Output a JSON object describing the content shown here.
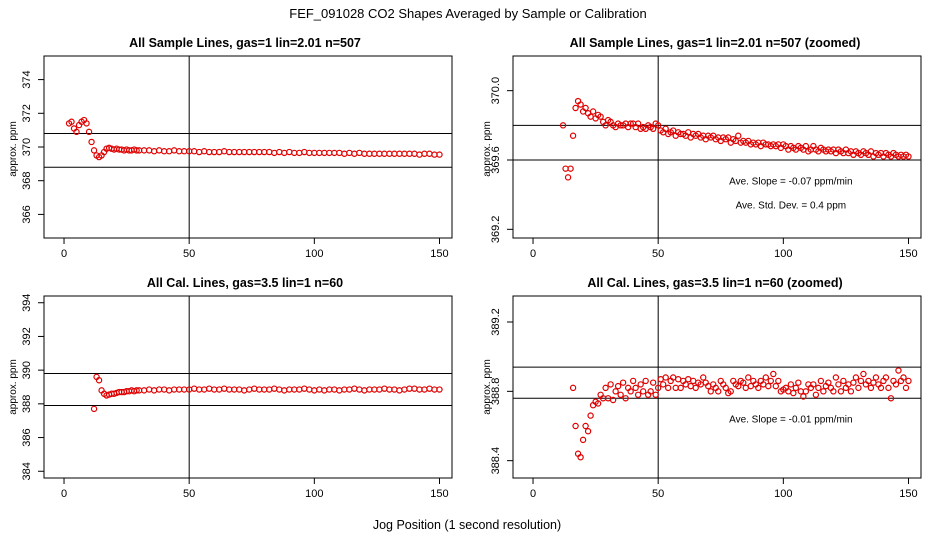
{
  "figure": {
    "title": "FEF_091028  CO2 Shapes Averaged by Sample or Calibration",
    "xlabel": "Jog Position (1 second resolution)"
  },
  "chart_data": [
    {
      "type": "scatter",
      "title": "All Sample Lines, gas=1 lin=2.01 n=507",
      "xlabel": "",
      "ylabel": "approx. ppm",
      "xlim": [
        -8,
        155
      ],
      "ylim": [
        364.6,
        375.4
      ],
      "xticks": [
        0,
        50,
        100,
        150
      ],
      "yticks": [
        366,
        368,
        370,
        372,
        374
      ],
      "ytick_decimals": 0,
      "vline": 50,
      "hlines": [
        370.8,
        368.8
      ],
      "annotations": [],
      "point_color": "#e00000",
      "series": [
        {
          "x": [
            2,
            3,
            4,
            5,
            6,
            7,
            8,
            9,
            10,
            11,
            12,
            13,
            14,
            15,
            16,
            17,
            18,
            19,
            20,
            21,
            22,
            23,
            24,
            25,
            26,
            27,
            28,
            29,
            30,
            32,
            34,
            36,
            38,
            40,
            42,
            44,
            46,
            48,
            50,
            52,
            54,
            56,
            58,
            60,
            62,
            64,
            66,
            68,
            70,
            72,
            74,
            76,
            78,
            80,
            82,
            84,
            86,
            88,
            90,
            92,
            94,
            96,
            98,
            100,
            102,
            104,
            106,
            108,
            110,
            112,
            114,
            116,
            118,
            120,
            122,
            124,
            126,
            128,
            130,
            132,
            134,
            136,
            138,
            140,
            142,
            144,
            146,
            148,
            150
          ],
          "y": [
            371.4,
            371.5,
            371.1,
            370.9,
            371.3,
            371.5,
            371.6,
            371.4,
            370.9,
            370.3,
            369.8,
            369.5,
            369.4,
            369.5,
            369.7,
            369.9,
            369.95,
            369.9,
            369.85,
            369.9,
            369.85,
            369.85,
            369.8,
            369.85,
            369.8,
            369.8,
            369.85,
            369.8,
            369.8,
            369.8,
            369.8,
            369.75,
            369.8,
            369.75,
            369.75,
            369.8,
            369.75,
            369.75,
            369.75,
            369.75,
            369.7,
            369.75,
            369.7,
            369.7,
            369.7,
            369.75,
            369.7,
            369.7,
            369.7,
            369.7,
            369.7,
            369.7,
            369.7,
            369.7,
            369.7,
            369.65,
            369.7,
            369.65,
            369.7,
            369.65,
            369.65,
            369.7,
            369.65,
            369.65,
            369.65,
            369.65,
            369.65,
            369.65,
            369.65,
            369.6,
            369.65,
            369.6,
            369.65,
            369.6,
            369.6,
            369.6,
            369.6,
            369.6,
            369.6,
            369.6,
            369.6,
            369.6,
            369.6,
            369.6,
            369.55,
            369.6,
            369.6,
            369.55,
            369.55
          ]
        }
      ]
    },
    {
      "type": "scatter",
      "title": "All Sample Lines, gas=1 lin=2.01 n=507 (zoomed)",
      "xlabel": "",
      "ylabel": "approx. ppm",
      "xlim": [
        -8,
        155
      ],
      "ylim": [
        369.15,
        370.2
      ],
      "xticks": [
        0,
        50,
        100,
        150
      ],
      "yticks": [
        369.2,
        369.6,
        370.0
      ],
      "ytick_decimals": 1,
      "vline": 50,
      "hlines": [
        369.8,
        369.6
      ],
      "annotations": [
        {
          "text": "Ave. Slope =  -0.07  ppm/min",
          "x": 103,
          "y": 369.46
        },
        {
          "text": "Ave. Std. Dev. =  0.4  ppm",
          "x": 103,
          "y": 369.32
        }
      ],
      "point_color": "#e00000",
      "series": [
        {
          "x": [
            12,
            13,
            14,
            15,
            16,
            17,
            18,
            19,
            20,
            21,
            22,
            23,
            24,
            25,
            26,
            27,
            28,
            29,
            30,
            31,
            32,
            33,
            34,
            35,
            36,
            37,
            38,
            39,
            40,
            41,
            42,
            43,
            44,
            45,
            46,
            47,
            48,
            49,
            50,
            51,
            52,
            53,
            54,
            55,
            56,
            57,
            58,
            59,
            60,
            61,
            62,
            63,
            64,
            65,
            66,
            67,
            68,
            69,
            70,
            71,
            72,
            73,
            74,
            75,
            76,
            77,
            78,
            79,
            80,
            81,
            82,
            83,
            84,
            85,
            86,
            87,
            88,
            89,
            90,
            91,
            92,
            93,
            94,
            95,
            96,
            97,
            98,
            99,
            100,
            101,
            102,
            103,
            104,
            105,
            106,
            107,
            108,
            109,
            110,
            111,
            112,
            113,
            114,
            115,
            116,
            117,
            118,
            119,
            120,
            121,
            122,
            123,
            124,
            125,
            126,
            127,
            128,
            129,
            130,
            131,
            132,
            133,
            134,
            135,
            136,
            137,
            138,
            139,
            140,
            141,
            142,
            143,
            144,
            145,
            146,
            147,
            148,
            149,
            150
          ],
          "y": [
            369.8,
            369.55,
            369.5,
            369.55,
            369.74,
            369.9,
            369.94,
            369.92,
            369.88,
            369.9,
            369.87,
            369.85,
            369.88,
            369.84,
            369.86,
            369.85,
            369.82,
            369.8,
            369.83,
            369.82,
            369.8,
            369.79,
            369.81,
            369.8,
            369.8,
            369.81,
            369.79,
            369.81,
            369.81,
            369.79,
            369.81,
            369.78,
            369.79,
            369.78,
            369.8,
            369.79,
            369.78,
            369.81,
            369.8,
            369.77,
            369.76,
            369.78,
            369.75,
            369.76,
            369.77,
            369.74,
            369.76,
            369.75,
            369.75,
            369.74,
            369.76,
            369.73,
            369.75,
            369.74,
            369.75,
            369.73,
            369.74,
            369.72,
            369.74,
            369.73,
            369.74,
            369.72,
            369.73,
            369.71,
            369.73,
            369.72,
            369.73,
            369.7,
            369.72,
            369.71,
            369.74,
            369.7,
            369.71,
            369.7,
            369.71,
            369.69,
            369.7,
            369.69,
            369.7,
            369.68,
            369.7,
            369.69,
            369.69,
            369.68,
            369.69,
            369.68,
            369.69,
            369.67,
            369.69,
            369.68,
            369.66,
            369.68,
            369.67,
            369.66,
            369.68,
            369.67,
            369.66,
            369.68,
            369.65,
            369.66,
            369.68,
            369.66,
            369.65,
            369.67,
            369.66,
            369.65,
            369.66,
            369.65,
            369.66,
            369.64,
            369.66,
            369.65,
            369.64,
            369.66,
            369.64,
            369.65,
            369.63,
            369.65,
            369.64,
            369.63,
            369.65,
            369.64,
            369.63,
            369.65,
            369.62,
            369.64,
            369.63,
            369.64,
            369.62,
            369.64,
            369.63,
            369.62,
            369.64,
            369.63,
            369.62,
            369.63,
            369.62,
            369.63,
            369.62
          ]
        }
      ]
    },
    {
      "type": "scatter",
      "title": "All Cal. Lines, gas=3.5 lin=1 n=60",
      "xlabel": "",
      "ylabel": "approx. ppm",
      "xlim": [
        -8,
        155
      ],
      "ylim": [
        383.6,
        394.4
      ],
      "xticks": [
        0,
        50,
        100,
        150
      ],
      "yticks": [
        384,
        386,
        388,
        390,
        392,
        394
      ],
      "ytick_decimals": 0,
      "vline": 50,
      "hlines": [
        389.8,
        387.9
      ],
      "annotations": [],
      "point_color": "#e00000",
      "series": [
        {
          "x": [
            12,
            13,
            14,
            15,
            16,
            17,
            18,
            19,
            20,
            21,
            22,
            23,
            24,
            25,
            26,
            27,
            28,
            29,
            30,
            32,
            34,
            36,
            38,
            40,
            42,
            44,
            46,
            48,
            50,
            52,
            54,
            56,
            58,
            60,
            62,
            64,
            66,
            68,
            70,
            72,
            74,
            76,
            78,
            80,
            82,
            84,
            86,
            88,
            90,
            92,
            94,
            96,
            98,
            100,
            102,
            104,
            106,
            108,
            110,
            112,
            114,
            116,
            118,
            120,
            122,
            124,
            126,
            128,
            130,
            132,
            134,
            136,
            138,
            140,
            142,
            144,
            146,
            148,
            150
          ],
          "y": [
            387.7,
            389.6,
            389.4,
            388.8,
            388.6,
            388.5,
            388.55,
            388.6,
            388.6,
            388.65,
            388.7,
            388.7,
            388.7,
            388.75,
            388.75,
            388.8,
            388.75,
            388.8,
            388.8,
            388.8,
            388.85,
            388.8,
            388.85,
            388.85,
            388.8,
            388.85,
            388.85,
            388.85,
            388.85,
            388.9,
            388.85,
            388.85,
            388.9,
            388.85,
            388.85,
            388.9,
            388.85,
            388.85,
            388.85,
            388.8,
            388.85,
            388.9,
            388.85,
            388.85,
            388.85,
            388.9,
            388.85,
            388.8,
            388.85,
            388.85,
            388.85,
            388.9,
            388.85,
            388.8,
            388.85,
            388.8,
            388.85,
            388.85,
            388.8,
            388.85,
            388.85,
            388.9,
            388.85,
            388.8,
            388.85,
            388.85,
            388.85,
            388.9,
            388.85,
            388.85,
            388.8,
            388.85,
            388.9,
            388.9,
            388.85,
            388.85,
            388.9,
            388.85,
            388.85
          ]
        }
      ]
    },
    {
      "type": "scatter",
      "title": "All Cal. Lines, gas=3.5 lin=1 n=60 (zoomed)",
      "xlabel": "",
      "ylabel": "approx. ppm",
      "xlim": [
        -8,
        155
      ],
      "ylim": [
        388.3,
        389.35
      ],
      "xticks": [
        0,
        50,
        100,
        150
      ],
      "yticks": [
        388.4,
        388.8,
        389.2
      ],
      "ytick_decimals": 1,
      "vline": 50,
      "hlines": [
        388.94,
        388.76
      ],
      "annotations": [
        {
          "text": "Ave. Slope =  -0.01  ppm/min",
          "x": 103,
          "y": 388.62
        }
      ],
      "point_color": "#e00000",
      "series": [
        {
          "x": [
            16,
            17,
            18,
            19,
            20,
            21,
            22,
            23,
            24,
            25,
            26,
            27,
            28,
            29,
            30,
            31,
            32,
            33,
            34,
            35,
            36,
            37,
            38,
            39,
            40,
            41,
            42,
            43,
            44,
            45,
            46,
            47,
            48,
            49,
            50,
            51,
            52,
            53,
            54,
            55,
            56,
            57,
            58,
            59,
            60,
            61,
            62,
            63,
            64,
            65,
            66,
            67,
            68,
            69,
            70,
            71,
            72,
            73,
            74,
            75,
            76,
            77,
            78,
            79,
            80,
            81,
            82,
            83,
            84,
            85,
            86,
            87,
            88,
            89,
            90,
            91,
            92,
            93,
            94,
            95,
            96,
            97,
            98,
            99,
            100,
            101,
            102,
            103,
            104,
            105,
            106,
            107,
            108,
            109,
            110,
            111,
            112,
            113,
            114,
            115,
            116,
            117,
            118,
            119,
            120,
            121,
            122,
            123,
            124,
            125,
            126,
            127,
            128,
            129,
            130,
            131,
            132,
            133,
            134,
            135,
            136,
            137,
            138,
            139,
            140,
            141,
            142,
            143,
            144,
            145,
            146,
            147,
            148,
            149,
            150
          ],
          "y": [
            388.82,
            388.6,
            388.44,
            388.42,
            388.52,
            388.6,
            388.57,
            388.66,
            388.72,
            388.74,
            388.73,
            388.78,
            388.76,
            388.82,
            388.76,
            388.84,
            388.75,
            388.8,
            388.83,
            388.78,
            388.85,
            388.76,
            388.82,
            388.8,
            388.86,
            388.82,
            388.78,
            388.84,
            388.8,
            388.86,
            388.78,
            388.8,
            388.85,
            388.78,
            388.82,
            388.87,
            388.84,
            388.88,
            388.82,
            388.86,
            388.88,
            388.82,
            388.87,
            388.82,
            388.86,
            388.84,
            388.87,
            388.83,
            388.86,
            388.82,
            388.85,
            388.84,
            388.88,
            388.85,
            388.83,
            388.8,
            388.84,
            388.82,
            388.8,
            388.86,
            388.84,
            388.82,
            388.79,
            388.8,
            388.86,
            388.84,
            388.83,
            388.86,
            388.85,
            388.82,
            388.88,
            388.83,
            388.86,
            388.84,
            388.82,
            388.86,
            388.84,
            388.88,
            388.83,
            388.86,
            388.9,
            388.83,
            388.86,
            388.8,
            388.81,
            388.82,
            388.8,
            388.84,
            388.79,
            388.82,
            388.85,
            388.8,
            388.77,
            388.8,
            388.84,
            388.82,
            388.84,
            388.78,
            388.82,
            388.86,
            388.8,
            388.83,
            388.85,
            388.82,
            388.8,
            388.88,
            388.84,
            388.8,
            388.86,
            388.82,
            388.84,
            388.8,
            388.85,
            388.88,
            388.82,
            388.86,
            388.9,
            388.84,
            388.86,
            388.82,
            388.85,
            388.88,
            388.84,
            388.82,
            388.86,
            388.88,
            388.82,
            388.76,
            388.86,
            388.84,
            388.92,
            388.86,
            388.88,
            388.82,
            388.86
          ]
        }
      ]
    }
  ]
}
